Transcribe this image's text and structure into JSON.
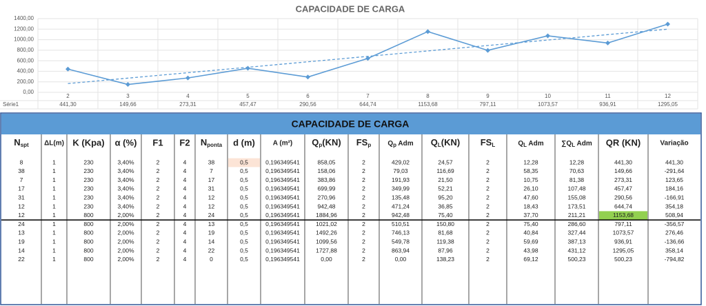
{
  "chart_data": {
    "type": "line",
    "title": "CAPACIDADE DE CARGA",
    "categories": [
      "2",
      "3",
      "4",
      "5",
      "6",
      "7",
      "8",
      "9",
      "10",
      "11",
      "12"
    ],
    "series": [
      {
        "name": "Série1",
        "color": "#5b9bd5",
        "values": [
          441.3,
          149.66,
          273.31,
          457.47,
          290.56,
          644.74,
          1153.68,
          797.11,
          1073.57,
          936.91,
          1295.05
        ],
        "value_labels": [
          "441,30",
          "149,66",
          "273,31",
          "457,47",
          "290,56",
          "644,74",
          "1153,68",
          "797,11",
          "1073,57",
          "936,91",
          "1295,05"
        ]
      }
    ],
    "ylim": [
      0,
      1400
    ],
    "yticks": [
      {
        "value": 0,
        "label": "0,00"
      },
      {
        "value": 200,
        "label": "200,00"
      },
      {
        "value": 400,
        "label": "400,00"
      },
      {
        "value": 600,
        "label": "600,00"
      },
      {
        "value": 800,
        "label": "800,00"
      },
      {
        "value": 1000,
        "label": "1000,00"
      },
      {
        "value": 1200,
        "label": "1200,00"
      },
      {
        "value": 1400,
        "label": "1400,00"
      }
    ],
    "grid": true,
    "trendline": "linear"
  },
  "table": {
    "title": "CAPACIDADE DE CARGA",
    "header": [
      [
        "N",
        "spt"
      ],
      "ΔL(m)",
      "K (Kpa)",
      "α (%)",
      "F1",
      "F2",
      [
        "N",
        "ponta"
      ],
      "d (m)",
      "A (m²)",
      [
        "Q",
        "p",
        "(KN)"
      ],
      [
        "FS",
        "p"
      ],
      [
        "Q",
        "p",
        " Adm"
      ],
      [
        "Q",
        "L",
        "(KN)"
      ],
      [
        "FS",
        "L"
      ],
      [
        "Q",
        "L",
        " Adm"
      ],
      [
        "∑Q",
        "L",
        " Adm"
      ],
      "QR (KN)",
      "Variação"
    ],
    "rows": [
      [
        "8",
        "1",
        "230",
        "3,40%",
        "2",
        "4",
        "38",
        "0,5",
        "0,196349541",
        "858,05",
        "2",
        "429,02",
        "24,57",
        "2",
        "12,28",
        "12,28",
        "441,30",
        "441,30"
      ],
      [
        "38",
        "1",
        "230",
        "3,40%",
        "2",
        "4",
        "7",
        "0,5",
        "0,196349541",
        "158,06",
        "2",
        "79,03",
        "116,69",
        "2",
        "58,35",
        "70,63",
        "149,66",
        "-291,64"
      ],
      [
        "7",
        "1",
        "230",
        "3,40%",
        "2",
        "4",
        "17",
        "0,5",
        "0,196349541",
        "383,86",
        "2",
        "191,93",
        "21,50",
        "2",
        "10,75",
        "81,38",
        "273,31",
        "123,65"
      ],
      [
        "17",
        "1",
        "230",
        "3,40%",
        "2",
        "4",
        "31",
        "0,5",
        "0,196349541",
        "699,99",
        "2",
        "349,99",
        "52,21",
        "2",
        "26,10",
        "107,48",
        "457,47",
        "184,16"
      ],
      [
        "31",
        "1",
        "230",
        "3,40%",
        "2",
        "4",
        "12",
        "0,5",
        "0,196349541",
        "270,96",
        "2",
        "135,48",
        "95,20",
        "2",
        "47,60",
        "155,08",
        "290,56",
        "-166,91"
      ],
      [
        "12",
        "1",
        "230",
        "3,40%",
        "2",
        "4",
        "12",
        "0,5",
        "0,196349541",
        "942,48",
        "2",
        "471,24",
        "36,85",
        "2",
        "18,43",
        "173,51",
        "644,74",
        "354,18"
      ],
      [
        "12",
        "1",
        "800",
        "2,00%",
        "2",
        "4",
        "24",
        "0,5",
        "0,196349541",
        "1884,96",
        "2",
        "942,48",
        "75,40",
        "2",
        "37,70",
        "211,21",
        "1153,68",
        "508,94"
      ],
      [
        "24",
        "1",
        "800",
        "2,00%",
        "2",
        "4",
        "13",
        "0,5",
        "0,196349541",
        "1021,02",
        "2",
        "510,51",
        "150,80",
        "2",
        "75,40",
        "286,60",
        "797,11",
        "-356,57"
      ],
      [
        "13",
        "1",
        "800",
        "2,00%",
        "2",
        "4",
        "19",
        "0,5",
        "0,196349541",
        "1492,26",
        "2",
        "746,13",
        "81,68",
        "2",
        "40,84",
        "327,44",
        "1073,57",
        "276,46"
      ],
      [
        "19",
        "1",
        "800",
        "2,00%",
        "2",
        "4",
        "14",
        "0,5",
        "0,196349541",
        "1099,56",
        "2",
        "549,78",
        "119,38",
        "2",
        "59,69",
        "387,13",
        "936,91",
        "-136,66"
      ],
      [
        "14",
        "1",
        "800",
        "2,00%",
        "2",
        "4",
        "22",
        "0,5",
        "0,196349541",
        "1727,88",
        "2",
        "863,94",
        "87,96",
        "2",
        "43,98",
        "431,12",
        "1295,05",
        "358,14"
      ],
      [
        "22",
        "1",
        "800",
        "2,00%",
        "2",
        "4",
        "0",
        "0,5",
        "0,196349541",
        "0,00",
        "2",
        "0,00",
        "138,23",
        "2",
        "69,12",
        "500,23",
        "500,23",
        "-794,82"
      ]
    ]
  }
}
